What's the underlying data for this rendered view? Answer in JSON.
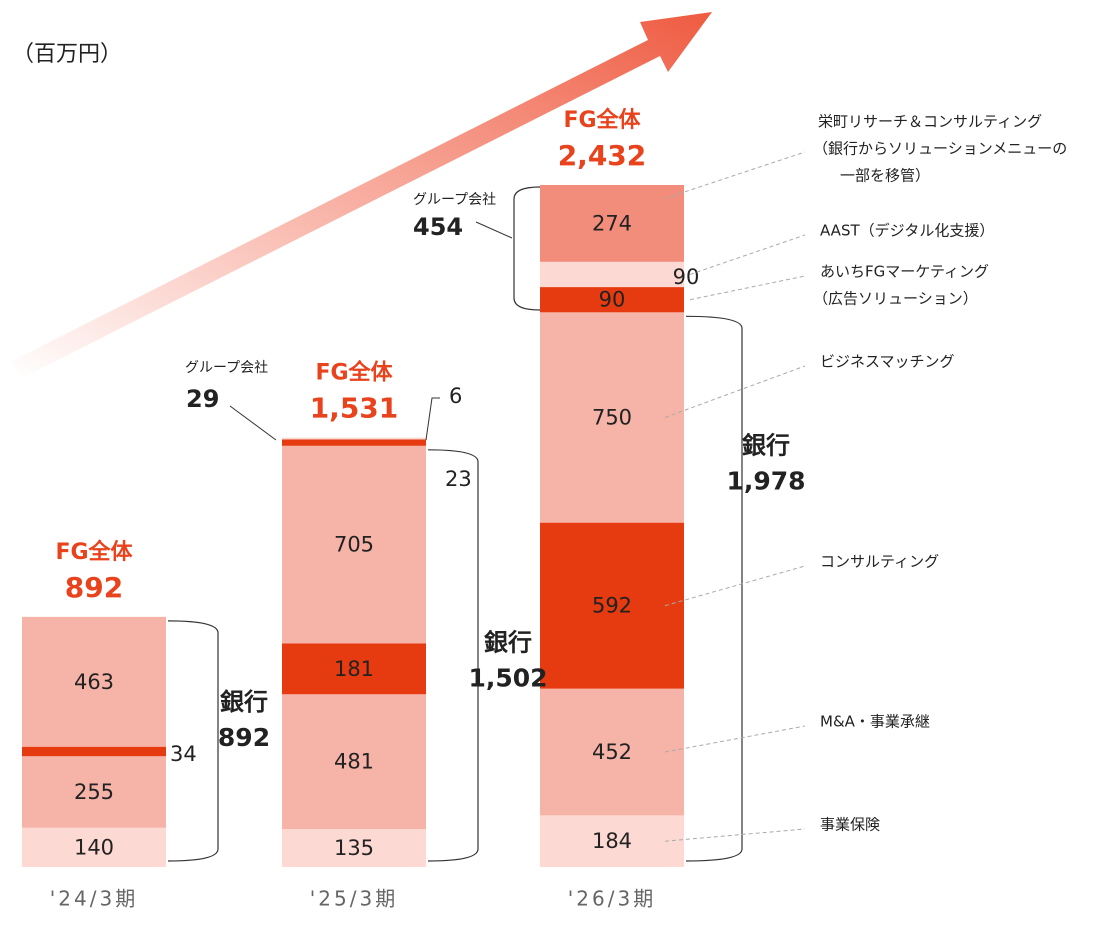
{
  "chart_data": {
    "type": "bar",
    "stacked": true,
    "unit_label": "（百万円）",
    "categories": [
      "'24/3期",
      "'25/3期",
      "'26/3期"
    ],
    "series": [
      {
        "name": "事業保険",
        "color": "#fcdad3",
        "values": [
          140,
          135,
          184
        ]
      },
      {
        "name": "M&A・事業承継",
        "color": "#f6b3a8",
        "values": [
          255,
          481,
          452
        ]
      },
      {
        "name": "コンサルティング",
        "color": "#e63b10",
        "values": [
          34,
          181,
          592
        ]
      },
      {
        "name": "ビジネスマッチング",
        "color": "#f6b3a8",
        "values": [
          463,
          705,
          750
        ]
      },
      {
        "name": "あいちFGマーケティング",
        "note_lines": [
          "（広告ソリューション）"
        ],
        "color": "#e63b10",
        "values": [
          null,
          23,
          90
        ]
      },
      {
        "name": "AAST（デジタル化支援）",
        "color": "#fcdad3",
        "values": [
          null,
          6,
          90
        ]
      },
      {
        "name": "栄町リサーチ＆コンサルティング",
        "note_lines": [
          "（銀行からソリューションメニューの",
          "一部を移管）"
        ],
        "color": "#f28d7b",
        "values": [
          null,
          null,
          274
        ]
      }
    ],
    "total_label": "FG全体",
    "totals": [
      892,
      1531,
      2432
    ],
    "total_value_labels": [
      "892",
      "1,531",
      "2,432"
    ],
    "bank_label": "銀行",
    "bank_totals": [
      892,
      1502,
      1978
    ],
    "bank_value_labels": [
      "892",
      "1,502",
      "1,978"
    ],
    "group_label": "グループ会社",
    "group_totals": [
      null,
      29,
      454
    ]
  }
}
